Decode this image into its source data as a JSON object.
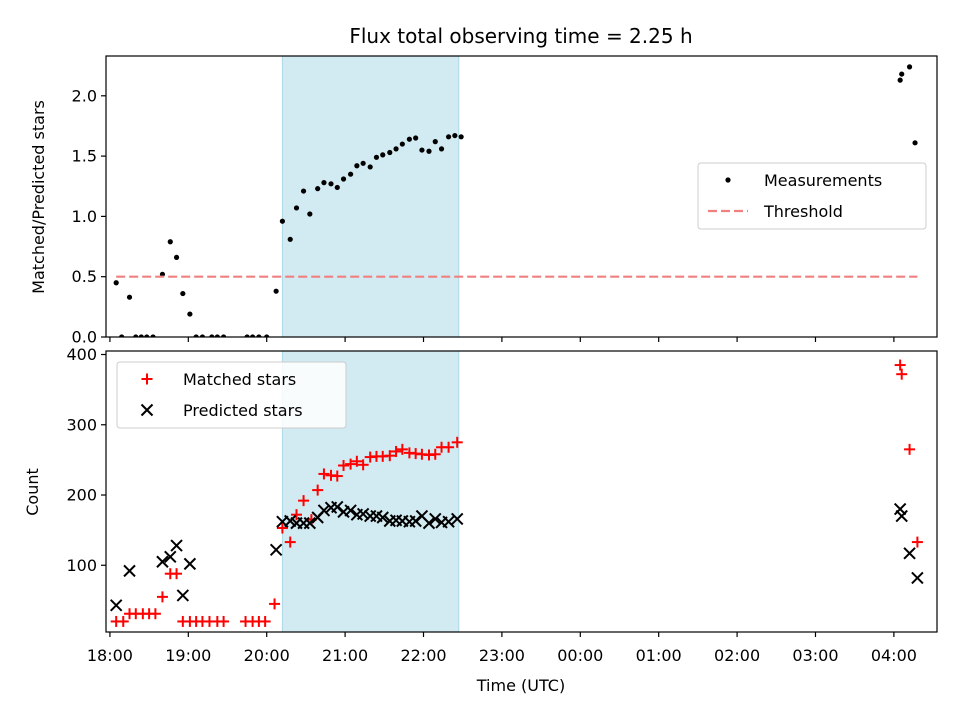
{
  "chart_data": {
    "type": "scatter",
    "title": "Flux total observing time = 2.25 h",
    "xlabel": "Time (UTC)",
    "x_tick_labels": [
      "18:00",
      "19:00",
      "20:00",
      "21:00",
      "22:00",
      "23:00",
      "00:00",
      "01:00",
      "02:00",
      "03:00",
      "04:00"
    ],
    "x_tick_hours": [
      18,
      19,
      20,
      21,
      22,
      23,
      24,
      25,
      26,
      27,
      28
    ],
    "xlim_hours": [
      17.95,
      28.55
    ],
    "shaded_interval_hours": [
      20.2,
      22.45
    ],
    "shade_color": "#add8e6",
    "panels": [
      {
        "ylabel": "Matched/Predicted stars",
        "ylim": [
          0,
          2.33
        ],
        "y_ticks": [
          0.0,
          0.5,
          1.0,
          1.5,
          2.0
        ],
        "y_tick_labels": [
          "0.0",
          "0.5",
          "1.0",
          "1.5",
          "2.0"
        ],
        "legend_position": "center-right",
        "series": [
          {
            "name": "Measurements",
            "marker": "dot",
            "color": "#000000",
            "points": [
              [
                18.08,
                0.45
              ],
              [
                18.15,
                0.0
              ],
              [
                18.25,
                0.33
              ],
              [
                18.33,
                0.0
              ],
              [
                18.4,
                0.0
              ],
              [
                18.47,
                0.0
              ],
              [
                18.55,
                0.0
              ],
              [
                18.67,
                0.52
              ],
              [
                18.77,
                0.79
              ],
              [
                18.85,
                0.66
              ],
              [
                18.93,
                0.36
              ],
              [
                19.02,
                0.19
              ],
              [
                19.1,
                0.0
              ],
              [
                19.18,
                0.0
              ],
              [
                19.3,
                0.0
              ],
              [
                19.37,
                0.0
              ],
              [
                19.45,
                0.0
              ],
              [
                19.75,
                0.0
              ],
              [
                19.82,
                0.0
              ],
              [
                19.9,
                0.0
              ],
              [
                20.0,
                0.0
              ],
              [
                20.12,
                0.38
              ],
              [
                20.2,
                0.96
              ],
              [
                20.3,
                0.81
              ],
              [
                20.38,
                1.07
              ],
              [
                20.47,
                1.21
              ],
              [
                20.55,
                1.02
              ],
              [
                20.65,
                1.23
              ],
              [
                20.73,
                1.28
              ],
              [
                20.82,
                1.27
              ],
              [
                20.9,
                1.24
              ],
              [
                20.98,
                1.31
              ],
              [
                21.07,
                1.35
              ],
              [
                21.15,
                1.42
              ],
              [
                21.23,
                1.44
              ],
              [
                21.32,
                1.41
              ],
              [
                21.4,
                1.49
              ],
              [
                21.48,
                1.51
              ],
              [
                21.57,
                1.53
              ],
              [
                21.65,
                1.56
              ],
              [
                21.73,
                1.6
              ],
              [
                21.82,
                1.64
              ],
              [
                21.9,
                1.65
              ],
              [
                21.98,
                1.55
              ],
              [
                22.07,
                1.54
              ],
              [
                22.15,
                1.62
              ],
              [
                22.23,
                1.56
              ],
              [
                22.32,
                1.66
              ],
              [
                22.4,
                1.67
              ],
              [
                22.48,
                1.66
              ],
              [
                28.08,
                2.13
              ],
              [
                28.1,
                2.18
              ],
              [
                28.2,
                2.24
              ],
              [
                28.27,
                1.61
              ]
            ]
          },
          {
            "name": "Threshold",
            "marker": "dashed-line",
            "color": "#f08080",
            "points": [
              [
                18.08,
                0.5
              ],
              [
                28.3,
                0.5
              ]
            ]
          }
        ]
      },
      {
        "ylabel": "Count",
        "ylim": [
          5,
          405
        ],
        "y_ticks": [
          100,
          200,
          300,
          400
        ],
        "y_tick_labels": [
          "100",
          "200",
          "300",
          "400"
        ],
        "legend_position": "top-left",
        "series": [
          {
            "name": "Matched stars",
            "marker": "plus",
            "color": "#ff0000",
            "points": [
              [
                18.08,
                20
              ],
              [
                18.17,
                20
              ],
              [
                18.25,
                31
              ],
              [
                18.33,
                31
              ],
              [
                18.42,
                31
              ],
              [
                18.5,
                31
              ],
              [
                18.58,
                31
              ],
              [
                18.67,
                55
              ],
              [
                18.77,
                88
              ],
              [
                18.85,
                88
              ],
              [
                18.93,
                20
              ],
              [
                19.02,
                20
              ],
              [
                19.1,
                20
              ],
              [
                19.18,
                20
              ],
              [
                19.27,
                20
              ],
              [
                19.37,
                20
              ],
              [
                19.45,
                20
              ],
              [
                19.73,
                20
              ],
              [
                19.82,
                20
              ],
              [
                19.9,
                20
              ],
              [
                19.98,
                20
              ],
              [
                20.1,
                45
              ],
              [
                20.2,
                153
              ],
              [
                20.3,
                133
              ],
              [
                20.38,
                172
              ],
              [
                20.47,
                192
              ],
              [
                20.57,
                165
              ],
              [
                20.65,
                207
              ],
              [
                20.73,
                230
              ],
              [
                20.82,
                228
              ],
              [
                20.9,
                227
              ],
              [
                20.98,
                242
              ],
              [
                21.07,
                244
              ],
              [
                21.15,
                248
              ],
              [
                21.23,
                243
              ],
              [
                21.32,
                254
              ],
              [
                21.4,
                255
              ],
              [
                21.48,
                255
              ],
              [
                21.57,
                256
              ],
              [
                21.65,
                262
              ],
              [
                21.73,
                265
              ],
              [
                21.82,
                260
              ],
              [
                21.9,
                259
              ],
              [
                21.98,
                258
              ],
              [
                22.07,
                257
              ],
              [
                22.15,
                258
              ],
              [
                22.23,
                268
              ],
              [
                22.32,
                268
              ],
              [
                22.43,
                275
              ],
              [
                28.08,
                385
              ],
              [
                28.1,
                372
              ],
              [
                28.2,
                265
              ],
              [
                28.3,
                133
              ]
            ]
          },
          {
            "name": "Predicted stars",
            "marker": "x",
            "color": "#000000",
            "points": [
              [
                18.08,
                43
              ],
              [
                18.25,
                92
              ],
              [
                18.67,
                105
              ],
              [
                18.77,
                112
              ],
              [
                18.85,
                128
              ],
              [
                18.93,
                57
              ],
              [
                19.02,
                102
              ],
              [
                20.12,
                122
              ],
              [
                20.2,
                162
              ],
              [
                20.3,
                163
              ],
              [
                20.38,
                160
              ],
              [
                20.47,
                160
              ],
              [
                20.55,
                160
              ],
              [
                20.65,
                168
              ],
              [
                20.73,
                178
              ],
              [
                20.82,
                182
              ],
              [
                20.9,
                183
              ],
              [
                20.98,
                176
              ],
              [
                21.07,
                178
              ],
              [
                21.15,
                172
              ],
              [
                21.23,
                173
              ],
              [
                21.32,
                170
              ],
              [
                21.4,
                170
              ],
              [
                21.48,
                168
              ],
              [
                21.57,
                163
              ],
              [
                21.65,
                164
              ],
              [
                21.73,
                163
              ],
              [
                21.82,
                162
              ],
              [
                21.9,
                163
              ],
              [
                21.98,
                170
              ],
              [
                22.07,
                160
              ],
              [
                22.15,
                166
              ],
              [
                22.23,
                161
              ],
              [
                22.32,
                162
              ],
              [
                22.43,
                166
              ],
              [
                28.08,
                180
              ],
              [
                28.1,
                170
              ],
              [
                28.2,
                117
              ],
              [
                28.3,
                82
              ]
            ]
          }
        ]
      }
    ]
  }
}
